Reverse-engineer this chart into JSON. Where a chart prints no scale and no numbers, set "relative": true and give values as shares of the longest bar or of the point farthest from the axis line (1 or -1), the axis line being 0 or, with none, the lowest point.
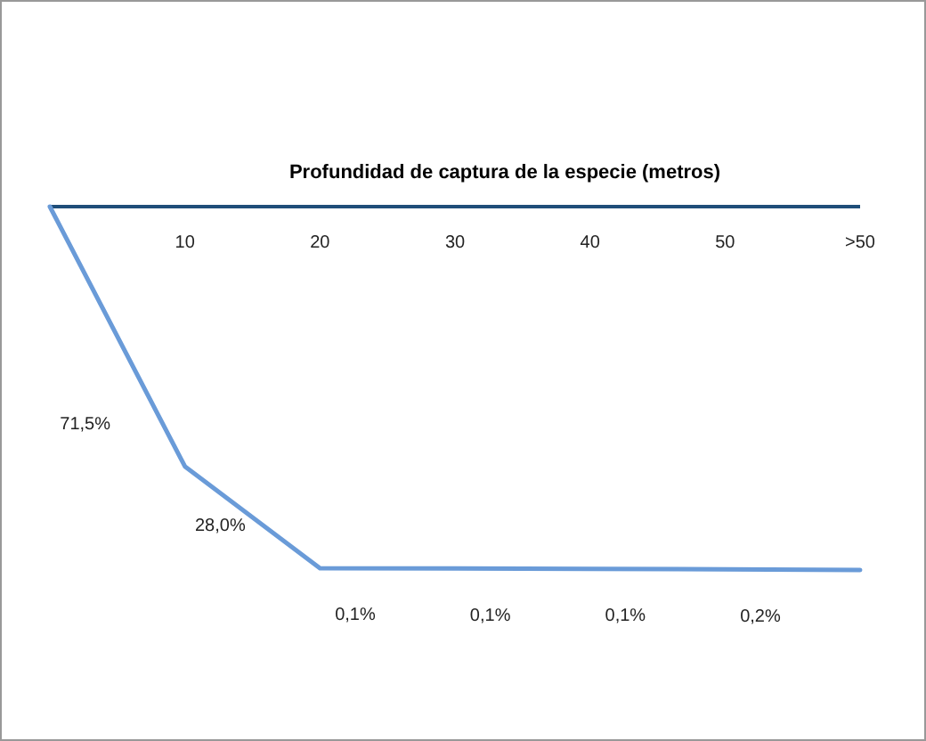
{
  "chart_data": {
    "type": "line",
    "xlabel": "Profundidad de captura de la especie (metros)",
    "categories": [
      null,
      "10",
      "20",
      "30",
      "40",
      "50",
      ">50"
    ],
    "relative": true,
    "series": [
      {
        "color": "#6a9bd8",
        "values": [
          0,
          -0.715,
          -0.995,
          -0.996,
          -0.997,
          -0.998,
          -1
        ]
      }
    ],
    "annotations": [
      "71,5%",
      "28,0%",
      "0,1%",
      "0,1%",
      "0,1%",
      "0,2%"
    ],
    "marker": "none",
    "line_style": "solid"
  }
}
